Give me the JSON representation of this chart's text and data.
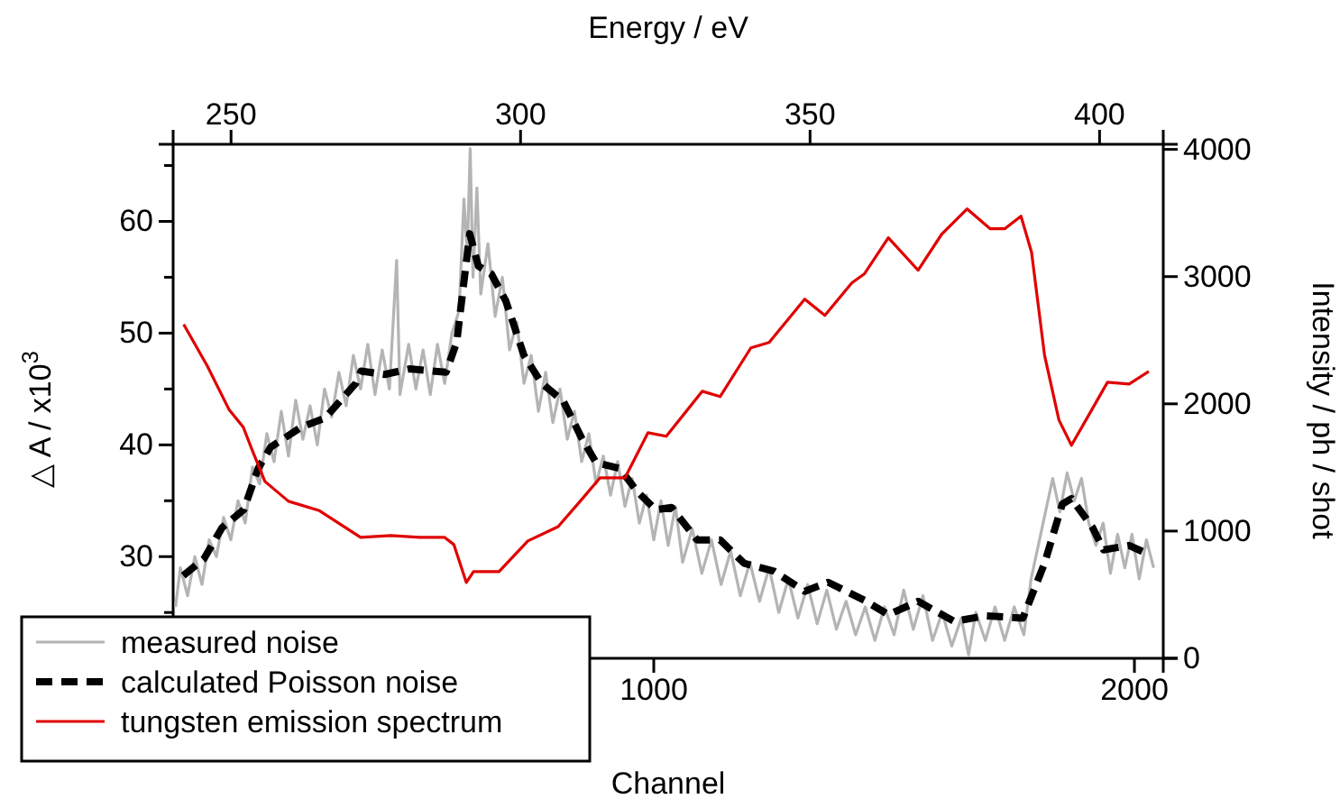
{
  "chart_data": {
    "type": "line",
    "xlabel": "Channel",
    "x2label": "Energy / eV",
    "ylabel": "△ A / x10$^{3}$",
    "y2label": "Intensity / ph / shot",
    "xlim": [
      0,
      2060
    ],
    "xticks": [
      1000,
      2000
    ],
    "x2lim": [
      240,
      411
    ],
    "x2ticks": [
      250,
      300,
      350,
      400
    ],
    "ylim": [
      20.9,
      66.9
    ],
    "yticks": [
      {
        "value": 25,
        "label": null
      },
      30,
      {
        "value": 35,
        "label": null
      },
      40,
      {
        "value": 45,
        "label": null
      },
      50,
      {
        "value": 55,
        "label": null
      },
      60,
      {
        "value": 65,
        "label": null
      }
    ],
    "y2lim": [
      0,
      4040
    ],
    "y2ticks": [
      0,
      1000,
      2000,
      3000,
      4000
    ],
    "grid": false,
    "legend": "bottom left",
    "series": [
      {
        "name": "measured noise",
        "color": "#b4b4b4",
        "line_style": "solid",
        "x": [
          5,
          15,
          30,
          45,
          60,
          75,
          90,
          105,
          120,
          135,
          150,
          165,
          180,
          195,
          210,
          225,
          240,
          255,
          270,
          285,
          300,
          315,
          330,
          345,
          360,
          375,
          390,
          405,
          420,
          435,
          450,
          465,
          472,
          490,
          505,
          520,
          535,
          550,
          565,
          580,
          595,
          605,
          612,
          618,
          624,
          632,
          640,
          655,
          670,
          685,
          700,
          715,
          730,
          745,
          760,
          775,
          790,
          805,
          820,
          835,
          850,
          865,
          880,
          895,
          910,
          925,
          940,
          955,
          970,
          985,
          1000,
          1015,
          1030,
          1045,
          1060,
          1080,
          1100,
          1120,
          1140,
          1160,
          1180,
          1200,
          1220,
          1240,
          1260,
          1280,
          1300,
          1320,
          1340,
          1360,
          1380,
          1400,
          1420,
          1440,
          1460,
          1480,
          1500,
          1520,
          1540,
          1560,
          1580,
          1600,
          1620,
          1640,
          1655,
          1670,
          1690,
          1710,
          1730,
          1750,
          1770,
          1785,
          1800,
          1815,
          1830,
          1845,
          1860,
          1875,
          1890,
          1905,
          1920,
          1935,
          1950,
          1965,
          1980,
          1995,
          2010,
          2025,
          2040
        ],
        "values": [
          25.5,
          29,
          26.5,
          30,
          27.5,
          31.5,
          30,
          33.5,
          31.5,
          35,
          33,
          38,
          36.5,
          41,
          38.5,
          43,
          39,
          44,
          40.5,
          43.5,
          40,
          45,
          42.5,
          46.5,
          43.5,
          48,
          45,
          49,
          44.5,
          48.5,
          45,
          56.5,
          44.5,
          49,
          45,
          48.5,
          44.5,
          49,
          45.5,
          50,
          52,
          62,
          57,
          66.5,
          55,
          63,
          53.5,
          58,
          51.5,
          55,
          48.5,
          51,
          45.5,
          48,
          43,
          46.5,
          42,
          45,
          40.5,
          43,
          38.5,
          41,
          36.5,
          39,
          35.5,
          38.5,
          34.5,
          37,
          33,
          35.5,
          31.5,
          35,
          31,
          34.5,
          29.5,
          32.5,
          28.5,
          31.5,
          27.5,
          30.5,
          26.5,
          29.5,
          26,
          29,
          25,
          28,
          24.5,
          27.5,
          24,
          27,
          23.5,
          26,
          23,
          25.5,
          22.5,
          25.5,
          23,
          27,
          23.5,
          26.5,
          22.5,
          25,
          22,
          24.5,
          21.2,
          25,
          22.5,
          25.5,
          22.5,
          25.5,
          23,
          28,
          31,
          34,
          37,
          34,
          37.5,
          35,
          37,
          33,
          31,
          33,
          28.5,
          32,
          29,
          32,
          28,
          31.5,
          29
        ]
      },
      {
        "name": "calculated Poisson noise",
        "color": "#000000",
        "line_style": "dashed",
        "x": [
          21,
          64,
          102,
          147,
          177,
          203,
          267,
          316,
          380,
          391,
          440,
          492,
          568,
          590,
          617,
          635,
          662,
          692,
          730,
          767,
          812,
          850,
          880,
          929,
          966,
          1004,
          1037,
          1090,
          1138,
          1188,
          1250,
          1314,
          1363,
          1438,
          1488,
          1550,
          1625,
          1689,
          1768,
          1813,
          1850,
          1869,
          1913,
          1936,
          1989,
          2030
        ],
        "values": [
          28.3,
          29.8,
          32.6,
          34.2,
          37.9,
          39.8,
          41.6,
          42.4,
          45.5,
          46.6,
          46.3,
          46.8,
          46.5,
          49.2,
          58.9,
          56,
          55.3,
          52.9,
          48,
          45.5,
          43.9,
          40.6,
          38.4,
          37.9,
          35.8,
          34.2,
          34.4,
          31.5,
          31.5,
          29.4,
          28.7,
          26.9,
          27.7,
          26.1,
          24.8,
          26,
          24.2,
          24.7,
          24.5,
          29.4,
          34.7,
          35.2,
          32.6,
          30.6,
          31,
          30.2
        ]
      },
      {
        "name": "tungsten emission spectrum",
        "color": "#e00000",
        "line_style": "solid",
        "axis": "y2",
        "x": [
          22,
          71,
          116,
          146,
          165,
          191,
          240,
          303,
          390,
          453,
          513,
          565,
          584,
          610,
          625,
          678,
          738,
          801,
          850,
          888,
          940,
          988,
          1026,
          1101,
          1138,
          1202,
          1240,
          1314,
          1356,
          1412,
          1438,
          1488,
          1550,
          1599,
          1652,
          1700,
          1730,
          1764,
          1786,
          1813,
          1843,
          1869,
          1899,
          1944,
          1989,
          2030
        ],
        "values": [
          2624,
          2298,
          1957,
          1816,
          1631,
          1390,
          1234,
          1163,
          950,
          965,
          950,
          950,
          894,
          596,
          681,
          681,
          922,
          1035,
          1248,
          1418,
          1418,
          1773,
          1745,
          2099,
          2057,
          2440,
          2482,
          2823,
          2695,
          2950,
          3021,
          3305,
          3050,
          3333,
          3532,
          3376,
          3376,
          3475,
          3191,
          2383,
          1872,
          1674,
          1872,
          2170,
          2156,
          2255
        ]
      }
    ]
  }
}
